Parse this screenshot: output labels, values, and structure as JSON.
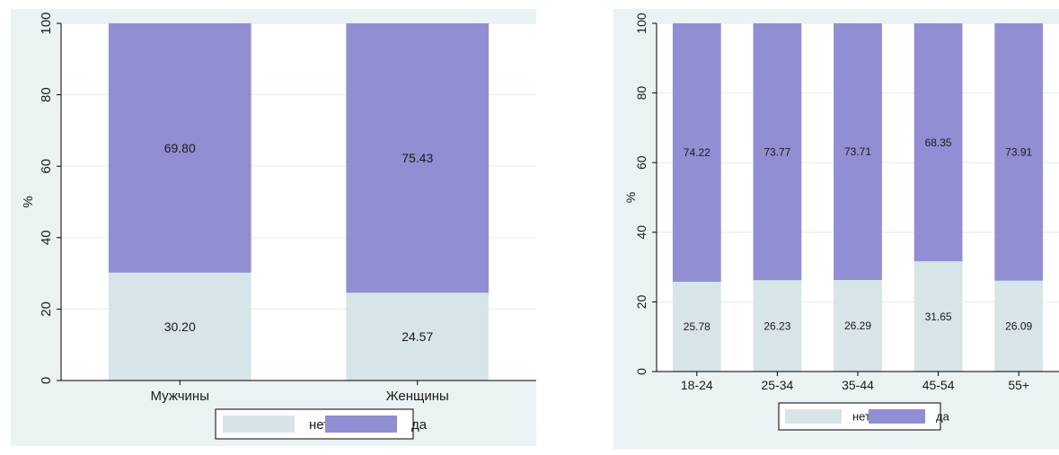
{
  "colors": {
    "background": "#eaf2f3",
    "plot_background": "#ffffff",
    "grid": "#e3ebec",
    "net": "#d7e4e8",
    "da": "#928ed3",
    "axis": "#000000",
    "text": "#1a1a1a"
  },
  "chart_data": [
    {
      "type": "bar",
      "stacked": true,
      "percent": true,
      "categories": [
        "Мужчины",
        "Женщины"
      ],
      "series": [
        {
          "name": "нет",
          "values": [
            30.2,
            24.57
          ],
          "labels": [
            "30.20",
            "24.57"
          ]
        },
        {
          "name": "да",
          "values": [
            69.8,
            75.43
          ],
          "labels": [
            "69.80",
            "75.43"
          ]
        }
      ],
      "ylabel": "%",
      "ylim": [
        0,
        100
      ],
      "yticks": [
        0,
        20,
        40,
        60,
        80,
        100
      ],
      "ytick_labels": [
        "0",
        "20",
        "40",
        "60",
        "80",
        "100"
      ],
      "grid": true,
      "legend": {
        "position": "bottom",
        "entries": [
          "нет",
          "да"
        ]
      }
    },
    {
      "type": "bar",
      "stacked": true,
      "percent": true,
      "categories": [
        "18-24",
        "25-34",
        "35-44",
        "45-54",
        "55+"
      ],
      "series": [
        {
          "name": "нет",
          "values": [
            25.78,
            26.23,
            26.29,
            31.65,
            26.09
          ],
          "labels": [
            "25.78",
            "26.23",
            "26.29",
            "31.65",
            "26.09"
          ]
        },
        {
          "name": "да",
          "values": [
            74.22,
            73.77,
            73.71,
            68.35,
            73.91
          ],
          "labels": [
            "74.22",
            "73.77",
            "73.71",
            "68.35",
            "73.91"
          ]
        }
      ],
      "ylabel": "%",
      "ylim": [
        0,
        100
      ],
      "yticks": [
        0,
        20,
        40,
        60,
        80,
        100
      ],
      "ytick_labels": [
        "0",
        "20",
        "40",
        "60",
        "80",
        "100"
      ],
      "grid": true,
      "legend": {
        "position": "bottom",
        "entries": [
          "нет",
          "да"
        ]
      }
    }
  ]
}
